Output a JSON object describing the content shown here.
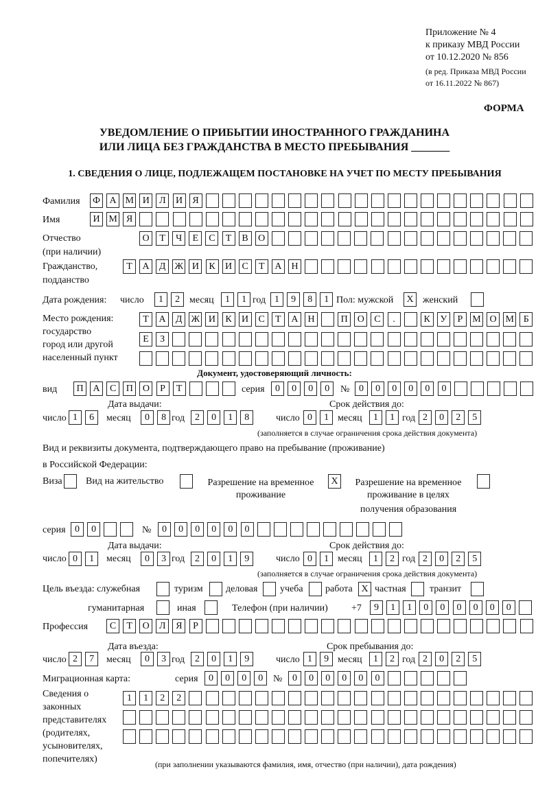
{
  "header": {
    "appendix": "Приложение № 4",
    "order": "к приказу МВД России",
    "order_date": "от 10.12.2020 № 856",
    "edit1": "(в ред. Приказа МВД России",
    "edit2": "от 16.11.2022 № 867)",
    "form": "ФОРМА",
    "title1": "УВЕДОМЛЕНИЕ О ПРИБЫТИИ ИНОСТРАННОГО ГРАЖДАНИНА",
    "title2": "ИЛИ ЛИЦА БЕЗ ГРАЖДАНСТВА В МЕСТО ПРЕБЫВАНИЯ _______",
    "section1": "1. СВЕДЕНИЯ О ЛИЦЕ, ПОДЛЕЖАЩЕМ ПОСТАНОВКЕ НА УЧЕТ ПО МЕСТУ ПРЕБЫВАНИЯ"
  },
  "labels": {
    "surname": "Фамилия",
    "name": "Имя",
    "patronymic1": "Отчество",
    "patronymic2": "(при наличии)",
    "citizenship1": "Гражданство,",
    "citizenship2": "подданство",
    "birth_date": "Дата рождения:",
    "day": "число",
    "month": "месяц",
    "year": "год",
    "sex": "Пол: мужской",
    "female": "женский",
    "birthplace1": "Место рождения:",
    "birthplace2": "государство",
    "birthplace3": "город или другой",
    "birthplace4": "населенный пункт",
    "id_doc": "Документ, удостоверяющий личность:",
    "kind": "вид",
    "series": "серия",
    "number": "№",
    "issue_date": "Дата выдачи:",
    "valid_until": "Срок действия до:",
    "valid_note": "(заполняется в случае ограничения срока действия документа)",
    "right_doc1": "Вид и реквизиты документа, подтверждающего право на пребывание (проживание)",
    "right_doc2": "в Российской Федерации:",
    "visa": "Виза",
    "residence": "Вид на жительство",
    "trp1": "Разрешение на временное",
    "trp2": "проживание",
    "trp_edu1": "Разрешение на временное",
    "trp_edu2": "проживание в целях",
    "trp_edu3": "получения образования",
    "purpose": "Цель въезда: служебная",
    "tourism": "туризм",
    "business": "деловая",
    "study": "учеба",
    "work": "работа",
    "private": "частная",
    "transit": "транзит",
    "humanitarian": "гуманитарная",
    "other": "иная",
    "phone": "Телефон (при наличии)",
    "phone_prefix": "+7",
    "profession": "Профессия",
    "entry_date": "Дата въезда:",
    "stay_until": "Срок пребывания до:",
    "migration_card": "Миграционная карта:",
    "reps1": "Сведения о",
    "reps2": "законных",
    "reps3": "представителях",
    "reps4": "(родителях,",
    "reps5": "усыновителях,",
    "reps6": "попечителях)",
    "reps_note": "(при заполнении указываются фамилия, имя, отчество (при наличии), дата рождения)"
  },
  "fields": {
    "surname": "ФАМИЛИЯ",
    "name": "ИМЯ",
    "patronymic": "ОТЧЕСТВО",
    "citizenship": "ТАДЖИКИСТАН",
    "birth_day": "12",
    "birth_month": "11",
    "birth_year": "1981",
    "sex_male": "X",
    "sex_female": "",
    "birthplace_1": "ТАДЖИКИСТАН ПОС. КУРМОМБ",
    "birthplace_2": "ЕЗ",
    "birthplace_3": "",
    "id_kind": "ПАСПОРТ",
    "id_series": "0000",
    "id_number": "000000",
    "id_issue_day": "16",
    "id_issue_month": "08",
    "id_issue_year": "2018",
    "id_valid_day": "01",
    "id_valid_month": "11",
    "id_valid_year": "2025",
    "visa": "",
    "residence": "",
    "trp": "X",
    "trp_edu": "",
    "right_series": "00",
    "right_number": "000000",
    "right_issue_day": "01",
    "right_issue_month": "03",
    "right_issue_year": "2019",
    "right_valid_day": "01",
    "right_valid_month": "12",
    "right_valid_year": "2025",
    "purpose_service": "",
    "purpose_tourism": "",
    "purpose_business": "",
    "purpose_study": "",
    "purpose_work": "X",
    "purpose_private": "",
    "purpose_transit": "",
    "purpose_humanitarian": "",
    "purpose_other": "",
    "phone": "911000000",
    "profession": "СТОЛЯР",
    "entry_day": "27",
    "entry_month": "03",
    "entry_year": "2019",
    "stay_day": "19",
    "stay_month": "12",
    "stay_year": "2025",
    "mc_series": "0000",
    "mc_number": "000000",
    "reps_1": "1122",
    "reps_2": "",
    "reps_3": ""
  }
}
